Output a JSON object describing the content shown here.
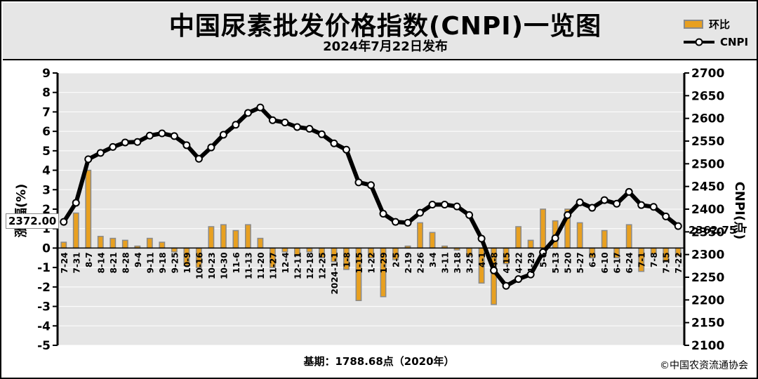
{
  "header": {
    "title": "中国尿素批发价格指数(CNPI)一览图",
    "subtitle": "2024年7月22日发布"
  },
  "legend": {
    "bar_label": "环比",
    "line_label": "CNPI"
  },
  "footer": {
    "base": "基期：1788.68点（2020年）",
    "copyright": "©中国农资流通协会"
  },
  "callouts": {
    "start_value": "2372.00",
    "end_value": "2362.75"
  },
  "colors": {
    "bar_fill": "#e8a020",
    "bar_edge": "#8a8a8a",
    "line": "#000000",
    "plot_bg": "#e6e6e6",
    "grid": "#ffffff"
  },
  "chart_data": {
    "type": "bar+line",
    "ylabel_left": "涨 幅(%)",
    "ylabel_right": "CNPI(点)",
    "ylim_left": [
      -5,
      9
    ],
    "ylim_right": [
      2100,
      2700
    ],
    "y_ticks_left": [
      "-5",
      "-4",
      "-3",
      "-2",
      "-1",
      "0",
      "1",
      "2",
      "3",
      "4",
      "5",
      "6",
      "7",
      "8",
      "9"
    ],
    "y_ticks_right": [
      "2100",
      "2150",
      "2200",
      "2250",
      "2300",
      "2350",
      "2400",
      "2450",
      "2500",
      "2550",
      "2600",
      "2650",
      "2700"
    ],
    "x_tick_labels": [
      "7-24",
      "7-31",
      "8-7",
      "8-14",
      "8-21",
      "8-28",
      "9-4",
      "9-11",
      "9-18",
      "9-25",
      "10-9",
      "10-16",
      "10-23",
      "10-30",
      "11-6",
      "11-13",
      "11-20",
      "11-27",
      "12-4",
      "12-11",
      "12-18",
      "12-25",
      "2024-1-1",
      "1-8",
      "1-15",
      "1-22",
      "1-29",
      "2-5",
      "2-19",
      "2-26",
      "3-4",
      "3-11",
      "3-18",
      "3-25",
      "4-1",
      "4-8",
      "4-15",
      "4-22",
      "4-29",
      "5-6",
      "5-13",
      "5-20",
      "5-27",
      "6-3",
      "6-10",
      "6-17",
      "6-24",
      "7-1",
      "7-8",
      "7-15",
      "7-22"
    ],
    "series": [
      {
        "name": "环比",
        "type": "bar",
        "values": [
          0.3,
          1.8,
          4.0,
          0.6,
          0.5,
          0.4,
          0.1,
          0.5,
          0.3,
          -0.2,
          -0.9,
          -1.0,
          1.1,
          1.2,
          0.9,
          1.2,
          0.5,
          -1.0,
          -0.2,
          -0.4,
          -0.2,
          -0.5,
          -0.7,
          -1.1,
          -2.7,
          -0.5,
          -2.5,
          -0.6,
          0.1,
          1.3,
          0.8,
          0.1,
          -0.1,
          -0.4,
          -1.8,
          -2.9,
          -0.8,
          1.1,
          0.4,
          2.0,
          1.4,
          2.0,
          1.3,
          -0.5,
          0.9,
          -0.5,
          1.2,
          -1.2,
          -0.3,
          -0.7,
          -0.4
        ]
      },
      {
        "name": "CNPI",
        "type": "line",
        "values": [
          2372,
          2414,
          2510,
          2524,
          2537,
          2547,
          2548,
          2562,
          2567,
          2561,
          2541,
          2511,
          2536,
          2564,
          2586,
          2612,
          2624,
          2596,
          2591,
          2581,
          2577,
          2565,
          2545,
          2531,
          2459,
          2453,
          2390,
          2372,
          2370,
          2392,
          2410,
          2410,
          2406,
          2387,
          2335,
          2265,
          2231,
          2246,
          2256,
          2305,
          2336,
          2387,
          2415,
          2403,
          2420,
          2412,
          2438,
          2409,
          2405,
          2384,
          2362.75
        ]
      }
    ]
  }
}
